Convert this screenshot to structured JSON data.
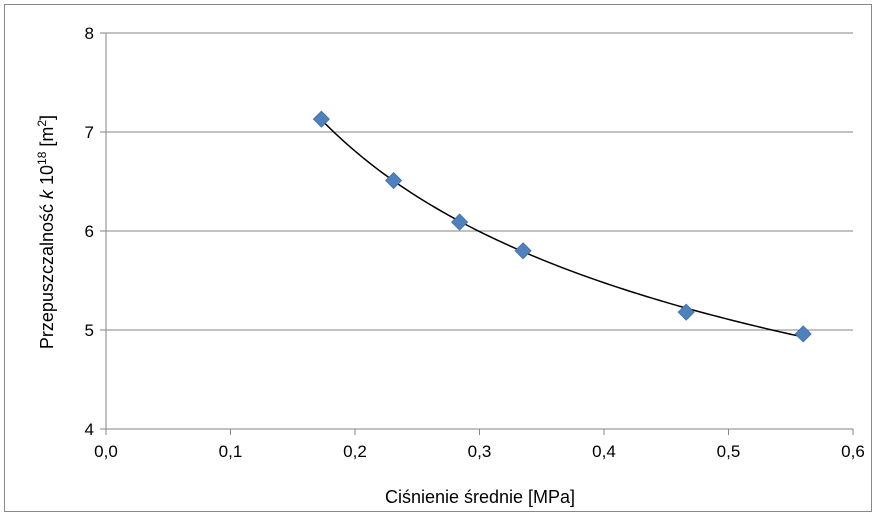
{
  "chart_data": {
    "type": "scatter",
    "title": "",
    "xlabel": "Ciśnienie średnie [MPa]",
    "ylabel": {
      "prefix": "Przepuszczalność ",
      "symbol": "k",
      "mid": " 10",
      "exp1": "18",
      "unit_open": " [m",
      "exp2": "2",
      "unit_close": "]"
    },
    "xlim": [
      0.0,
      0.6
    ],
    "ylim": [
      4,
      8
    ],
    "x_ticks": [
      "0,0",
      "0,1",
      "0,2",
      "0,3",
      "0,4",
      "0,5",
      "0,6"
    ],
    "y_ticks": [
      "4",
      "5",
      "6",
      "7",
      "8"
    ],
    "grid": "horizontal",
    "legend": "none",
    "marker_color": "#4F81BD",
    "trendline_color": "#000000",
    "series": [
      {
        "x": [
          0.173,
          0.231,
          0.284,
          0.335,
          0.466,
          0.56
        ],
        "y": [
          7.13,
          6.51,
          6.09,
          5.8,
          5.18,
          4.96
        ]
      }
    ],
    "trendline": {
      "type": "power",
      "x_range": [
        0.173,
        0.56
      ]
    }
  }
}
